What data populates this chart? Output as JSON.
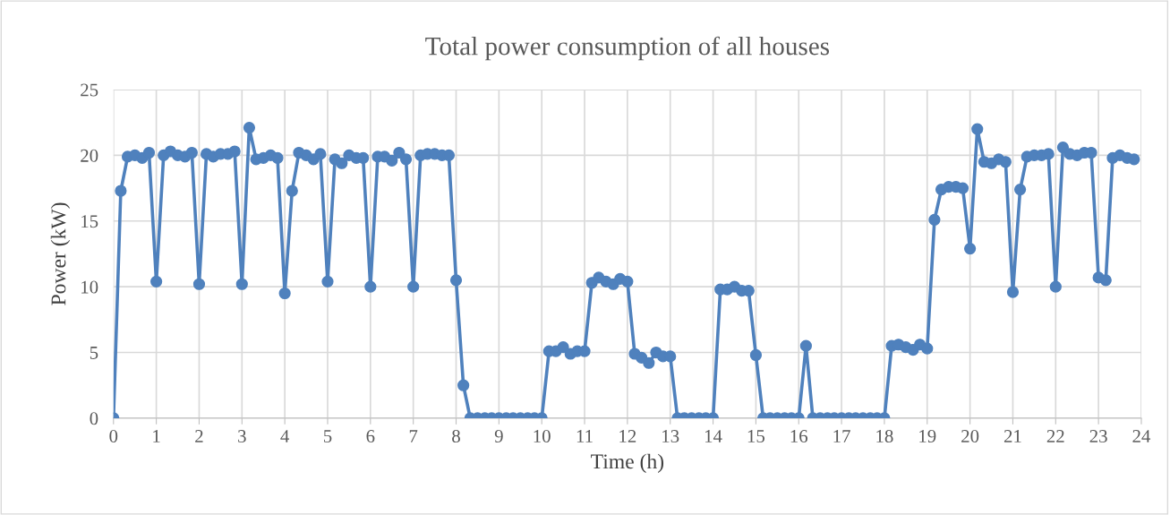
{
  "chart_data": {
    "type": "line",
    "title": "Total power consumption of all houses",
    "xlabel": "Time (h)",
    "ylabel": "Power (kW)",
    "x": [
      0,
      0.17,
      0.33,
      0.5,
      0.67,
      0.83,
      1,
      1.17,
      1.33,
      1.5,
      1.67,
      1.83,
      2,
      2.17,
      2.33,
      2.5,
      2.67,
      2.83,
      3,
      3.17,
      3.33,
      3.5,
      3.67,
      3.83,
      4,
      4.17,
      4.33,
      4.5,
      4.67,
      4.83,
      5,
      5.17,
      5.33,
      5.5,
      5.67,
      5.83,
      6,
      6.17,
      6.33,
      6.5,
      6.67,
      6.83,
      7,
      7.17,
      7.33,
      7.5,
      7.67,
      7.83,
      8,
      8.17,
      8.33,
      8.5,
      8.67,
      8.83,
      9,
      9.17,
      9.33,
      9.5,
      9.67,
      9.83,
      10,
      10.17,
      10.33,
      10.5,
      10.67,
      10.83,
      11,
      11.17,
      11.33,
      11.5,
      11.67,
      11.83,
      12,
      12.17,
      12.33,
      12.5,
      12.67,
      12.83,
      13,
      13.17,
      13.33,
      13.5,
      13.67,
      13.83,
      14,
      14.17,
      14.33,
      14.5,
      14.67,
      14.83,
      15,
      15.17,
      15.33,
      15.5,
      15.67,
      15.83,
      16,
      16.17,
      16.33,
      16.5,
      16.67,
      16.83,
      17,
      17.17,
      17.33,
      17.5,
      17.67,
      17.83,
      18,
      18.17,
      18.33,
      18.5,
      18.67,
      18.83,
      19,
      19.17,
      19.33,
      19.5,
      19.67,
      19.83,
      20,
      20.17,
      20.33,
      20.5,
      20.67,
      20.83,
      21,
      21.17,
      21.33,
      21.5,
      21.67,
      21.83,
      22,
      22.17,
      22.33,
      22.5,
      22.67,
      22.83,
      23,
      23.17,
      23.33,
      23.5,
      23.67,
      23.83
    ],
    "series": [
      {
        "color": "#4f81bd",
        "values": [
          0,
          17.3,
          19.9,
          20.0,
          19.8,
          20.2,
          10.4,
          20.0,
          20.3,
          20.0,
          19.9,
          20.2,
          10.2,
          20.1,
          19.9,
          20.1,
          20.1,
          20.3,
          10.2,
          22.1,
          19.7,
          19.8,
          20.0,
          19.8,
          9.5,
          17.3,
          20.2,
          20.0,
          19.7,
          20.1,
          10.4,
          19.7,
          19.4,
          20.0,
          19.8,
          19.8,
          10.0,
          19.9,
          19.9,
          19.6,
          20.2,
          19.7,
          10.0,
          20.0,
          20.1,
          20.1,
          20.0,
          20.0,
          10.5,
          2.5,
          0,
          0,
          0,
          0,
          0,
          0,
          0,
          0,
          0,
          0,
          0,
          5.1,
          5.1,
          5.4,
          4.9,
          5.1,
          5.1,
          10.3,
          10.7,
          10.4,
          10.2,
          10.6,
          10.4,
          4.9,
          4.6,
          4.2,
          5.0,
          4.7,
          4.7,
          0,
          0,
          0,
          0,
          0,
          0,
          9.8,
          9.8,
          10.0,
          9.7,
          9.7,
          4.8,
          0,
          0,
          0,
          0,
          0,
          0,
          5.5,
          0,
          0,
          0,
          0,
          0,
          0,
          0,
          0,
          0,
          0,
          0,
          5.5,
          5.6,
          5.4,
          5.2,
          5.6,
          5.3,
          15.1,
          17.4,
          17.6,
          17.6,
          17.5,
          12.9,
          22.0,
          19.5,
          19.4,
          19.7,
          19.5,
          9.6,
          17.4,
          19.9,
          20.0,
          20.0,
          20.1,
          10.0,
          20.6,
          20.1,
          20.0,
          20.2,
          20.2,
          10.7,
          10.5,
          19.8,
          20.0,
          19.8,
          19.7
        ]
      }
    ],
    "xlim": [
      0,
      24
    ],
    "xticks": [
      0,
      1,
      2,
      3,
      4,
      5,
      6,
      7,
      8,
      9,
      10,
      11,
      12,
      13,
      14,
      15,
      16,
      17,
      18,
      19,
      20,
      21,
      22,
      23,
      24
    ],
    "ylim": [
      0,
      25
    ],
    "yticks": [
      0,
      5,
      10,
      15,
      20,
      25
    ],
    "grid": true,
    "marker": "circle",
    "line_style": "solid"
  }
}
